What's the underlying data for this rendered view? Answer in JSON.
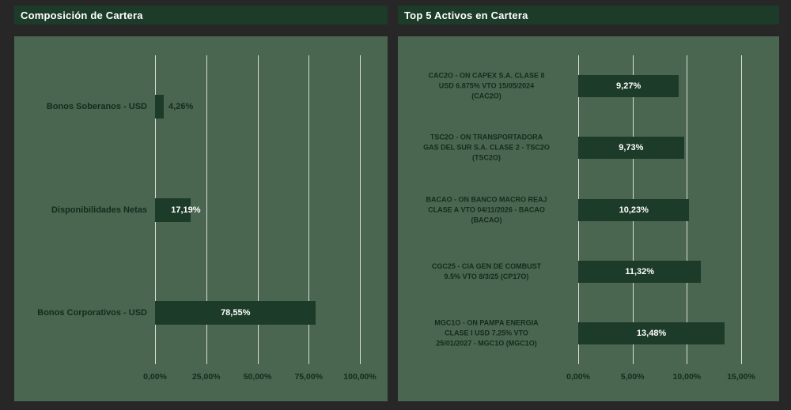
{
  "colors": {
    "background": "#272727",
    "panel_bg": "#4a6550",
    "bar": "#1d3b29",
    "header_bg": "#1d3b29",
    "grid": "#f2f2f2",
    "label_dark": "#142c1d",
    "label_light": "#ffffff"
  },
  "chart_data": [
    {
      "type": "bar",
      "orientation": "horizontal",
      "title": "Composición de Cartera",
      "categories": [
        "Bonos Soberanos - USD",
        "Disponibilidades Netas",
        "Bonos Corporativos - USD"
      ],
      "values": [
        4.26,
        17.19,
        78.55
      ],
      "data_labels": [
        "4,26%",
        "17,19%",
        "78,55%"
      ],
      "label_styles": [
        "outside-dark",
        "inside-end-light",
        "center-light"
      ],
      "x_ticks": [
        {
          "value": 0,
          "label": "0,00%"
        },
        {
          "value": 25,
          "label": "25,00%"
        },
        {
          "value": 50,
          "label": "50,00%"
        },
        {
          "value": 75,
          "label": "75,00%"
        },
        {
          "value": 100,
          "label": "100,00%"
        }
      ],
      "xlim": [
        0,
        100
      ],
      "grid": true,
      "legend": false
    },
    {
      "type": "bar",
      "orientation": "horizontal",
      "title": "Top 5 Activos en Cartera",
      "categories": [
        [
          "CAC2O - ON CAPEX S.A. CLASE II",
          "USD 6.875% VTO 15/05/2024",
          "(CAC2O)"
        ],
        [
          "TSC2O - ON TRANSPORTADORA",
          "GAS DEL SUR S.A. CLASE 2 - TSC2O",
          "(TSC2O)"
        ],
        [
          "BACAO - ON BANCO MACRO REAJ",
          "CLASE A VTO 04/11/2026 - BACAO",
          "(BACAO)"
        ],
        [
          "CGC25 - CIA GEN DE COMBUST",
          "9.5% VTO 8/3/25 (CP17O)"
        ],
        [
          "MGC1O - ON PAMPA ENERGIA",
          "CLASE I USD 7.25% VTO",
          "25/01/2027 - MGC1O (MGC1O)"
        ]
      ],
      "values": [
        9.27,
        9.73,
        10.23,
        11.32,
        13.48
      ],
      "data_labels": [
        "9,27%",
        "9,73%",
        "10,23%",
        "11,32%",
        "13,48%"
      ],
      "label_styles": [
        "center-light",
        "center-light",
        "center-light",
        "center-light",
        "center-light"
      ],
      "x_ticks": [
        {
          "value": 0,
          "label": "0,00%"
        },
        {
          "value": 5,
          "label": "5,00%"
        },
        {
          "value": 10,
          "label": "10,00%"
        },
        {
          "value": 15,
          "label": "15,00%"
        }
      ],
      "xlim": [
        0,
        15
      ],
      "grid": true,
      "legend": false
    }
  ]
}
